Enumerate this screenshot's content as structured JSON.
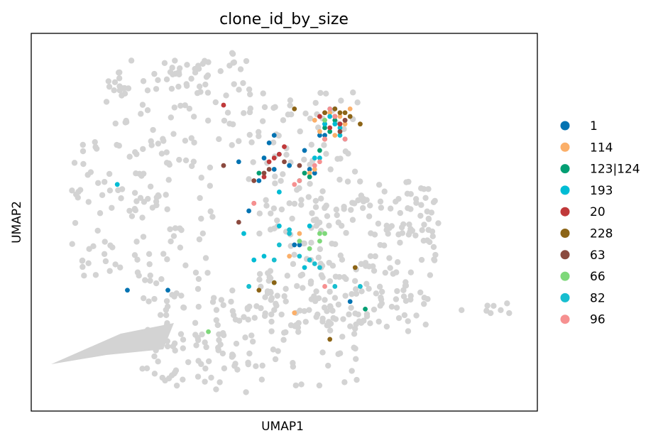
{
  "chart_data": {
    "type": "scatter",
    "title": "clone_id_by_size",
    "xlabel": "UMAP1",
    "ylabel": "UMAP2",
    "xlim": [
      0,
      100
    ],
    "ylim": [
      0,
      100
    ],
    "grid": false,
    "ticks_shown": false,
    "legend_placement": "right",
    "background_points_color": "#d3d3d3",
    "series": [
      {
        "name": "1",
        "color": "#0173b2",
        "points": [
          [
            19,
            32
          ],
          [
            27,
            32
          ],
          [
            41,
            66
          ],
          [
            43,
            53
          ],
          [
            45,
            61
          ],
          [
            46,
            67
          ],
          [
            47,
            71
          ],
          [
            48,
            64
          ],
          [
            48,
            73
          ],
          [
            49,
            68
          ],
          [
            51,
            65
          ],
          [
            52,
            44
          ],
          [
            53,
            44
          ],
          [
            54,
            69
          ],
          [
            55,
            64
          ],
          [
            56,
            63
          ],
          [
            57,
            73
          ],
          [
            58,
            73
          ],
          [
            58,
            76
          ],
          [
            61,
            76
          ],
          [
            63,
            29
          ],
          [
            60,
            80
          ],
          [
            62,
            72
          ]
        ]
      },
      {
        "name": "114",
        "color": "#fbaf69",
        "points": [
          [
            51,
            41
          ],
          [
            53,
            47
          ],
          [
            54,
            63
          ],
          [
            55,
            63
          ],
          [
            56,
            64
          ],
          [
            56,
            77
          ],
          [
            57,
            74
          ],
          [
            58,
            77
          ],
          [
            58,
            72
          ],
          [
            59,
            79
          ],
          [
            60,
            73
          ],
          [
            61,
            78
          ],
          [
            62,
            76
          ],
          [
            63,
            80
          ],
          [
            52,
            26
          ]
        ]
      },
      {
        "name": "123|124",
        "color": "#029e73",
        "points": [
          [
            45,
            63
          ],
          [
            53,
            61
          ],
          [
            54,
            63
          ],
          [
            55,
            62
          ],
          [
            57,
            69
          ],
          [
            58,
            75
          ],
          [
            59,
            74
          ],
          [
            60,
            77
          ],
          [
            48,
            34
          ],
          [
            66,
            27
          ]
        ]
      },
      {
        "name": "193",
        "color": "#00bcd4",
        "points": [
          [
            17,
            60
          ],
          [
            49,
            58
          ],
          [
            49,
            49
          ],
          [
            56,
            67
          ],
          [
            55,
            49
          ],
          [
            57,
            67
          ],
          [
            59,
            78
          ],
          [
            60,
            76
          ],
          [
            61,
            73
          ],
          [
            42,
            47
          ],
          [
            44,
            40
          ],
          [
            46,
            41
          ],
          [
            54,
            38
          ],
          [
            58,
            76
          ],
          [
            61,
            75
          ]
        ]
      },
      {
        "name": "20",
        "color": "#c0393a",
        "points": [
          [
            38,
            81
          ],
          [
            46,
            62
          ],
          [
            47,
            66
          ],
          [
            48,
            67
          ],
          [
            49,
            68
          ],
          [
            50,
            70
          ],
          [
            57,
            78
          ],
          [
            58,
            79
          ],
          [
            59,
            75
          ],
          [
            60,
            78
          ],
          [
            61,
            76
          ],
          [
            58,
            72
          ],
          [
            62,
            77
          ],
          [
            44,
            55
          ]
        ]
      },
      {
        "name": "228",
        "color": "#8c6416",
        "points": [
          [
            52,
            80
          ],
          [
            58,
            79
          ],
          [
            60,
            80
          ],
          [
            61,
            79
          ],
          [
            62,
            79
          ],
          [
            63,
            78
          ],
          [
            65,
            76
          ],
          [
            45,
            32
          ],
          [
            48,
            34
          ],
          [
            64,
            38
          ],
          [
            59,
            19
          ]
        ]
      },
      {
        "name": "63",
        "color": "#8b4a3f",
        "points": [
          [
            38,
            65
          ],
          [
            41,
            50
          ],
          [
            44,
            61
          ],
          [
            46,
            63
          ],
          [
            47,
            64
          ],
          [
            50,
            66
          ],
          [
            53,
            65
          ],
          [
            60,
            78
          ],
          [
            61,
            74
          ],
          [
            62,
            77
          ]
        ]
      },
      {
        "name": "66",
        "color": "#7ed87a",
        "points": [
          [
            57,
            47
          ],
          [
            58,
            47
          ],
          [
            53,
            45
          ],
          [
            55,
            43
          ],
          [
            57,
            45
          ],
          [
            35,
            21
          ],
          [
            58,
            77
          ]
        ]
      },
      {
        "name": "82",
        "color": "#17becf",
        "points": [
          [
            51,
            48
          ],
          [
            51,
            47
          ],
          [
            49,
            44
          ],
          [
            48,
            40
          ],
          [
            53,
            41
          ],
          [
            55,
            40
          ],
          [
            56,
            39
          ],
          [
            60,
            33
          ],
          [
            65,
            33
          ],
          [
            57,
            38
          ],
          [
            43,
            33
          ],
          [
            59,
            80
          ]
        ]
      },
      {
        "name": "96",
        "color": "#f69090",
        "points": [
          [
            44,
            55
          ],
          [
            52,
            60
          ],
          [
            56,
            65
          ],
          [
            57,
            66
          ],
          [
            58,
            72
          ],
          [
            59,
            80
          ],
          [
            60,
            78
          ],
          [
            62,
            72
          ],
          [
            58,
            33
          ],
          [
            53,
            61
          ]
        ]
      }
    ]
  }
}
